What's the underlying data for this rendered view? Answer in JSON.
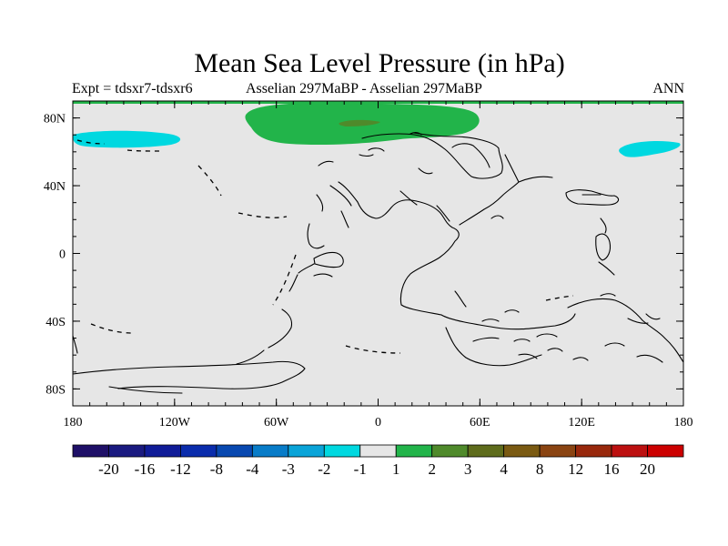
{
  "title": "Mean Sea Level Pressure (in hPa)",
  "subtitle_left": "Expt = tdsxr7-tdsxr6",
  "subtitle_center": "Asselian 297MaBP - Asselian 297MaBP",
  "subtitle_right": "ANN",
  "colors": {
    "ocean_background": "#e6e6e6",
    "coastline": "#000000",
    "positive_1_2": "#22b44a",
    "positive_2_3": "#4f8a2b",
    "negative_2_1": "#00d8e0"
  },
  "map": {
    "projection": "cylindrical equidistant",
    "lon_range": [
      -180,
      180
    ],
    "lat_range": [
      -90,
      90
    ],
    "lon_ticks": [
      {
        "value": -180,
        "label": "180"
      },
      {
        "value": -120,
        "label": "120W"
      },
      {
        "value": -60,
        "label": "60W"
      },
      {
        "value": 0,
        "label": "0"
      },
      {
        "value": 60,
        "label": "60E"
      },
      {
        "value": 120,
        "label": "120E"
      },
      {
        "value": 180,
        "label": "180"
      }
    ],
    "lat_ticks": [
      {
        "value": 80,
        "label": "80N"
      },
      {
        "value": 40,
        "label": "40N"
      },
      {
        "value": 0,
        "label": "0"
      },
      {
        "value": -40,
        "label": "40S"
      },
      {
        "value": -80,
        "label": "80S"
      }
    ]
  },
  "colorbar": {
    "colors": [
      "#1f1068",
      "#1a1a80",
      "#101c98",
      "#0a2cac",
      "#0848b0",
      "#087cc8",
      "#0aa4d8",
      "#00d8e0",
      "#e6e6e6",
      "#22b44a",
      "#4f8a2b",
      "#5e6c1c",
      "#7a5a12",
      "#8a4412",
      "#98280c",
      "#bc1010",
      "#cc0000"
    ],
    "labels": [
      "-20",
      "-16",
      "-12",
      "-8",
      "-4",
      "-3",
      "-2",
      "-1",
      "1",
      "2",
      "3",
      "4",
      "8",
      "12",
      "16",
      "20"
    ]
  }
}
